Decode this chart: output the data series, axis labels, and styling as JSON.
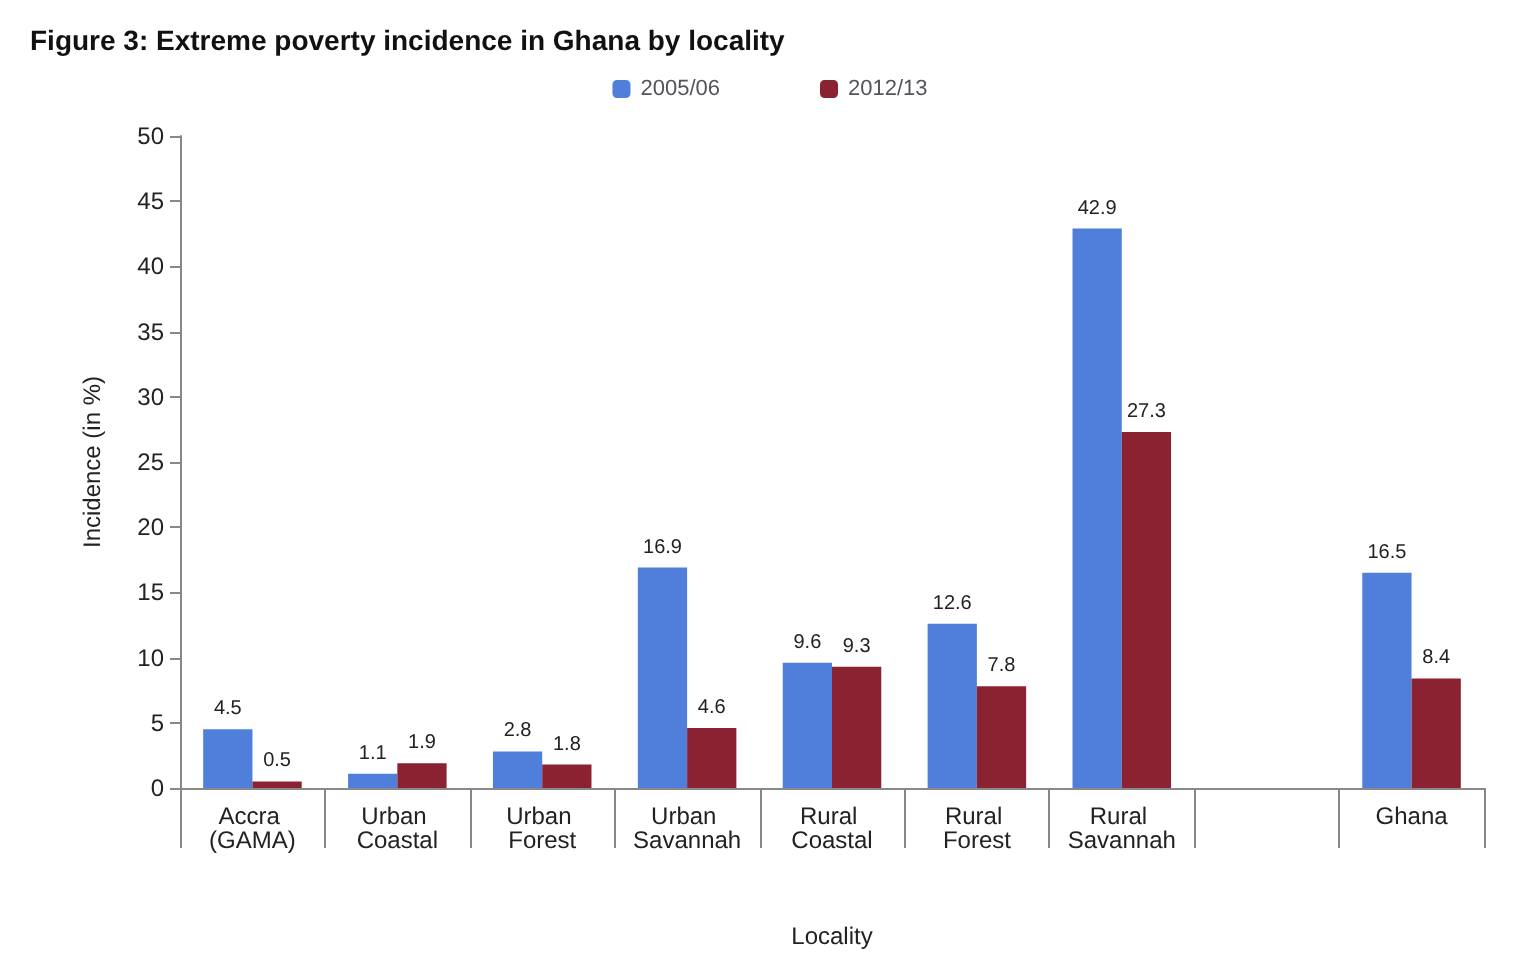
{
  "chart_data": {
    "type": "bar",
    "title": "Figure 3: Extreme poverty incidence in Ghana by locality",
    "xlabel": "Locality",
    "ylabel": "Incidence (in %)",
    "categories": [
      "Accra (GAMA)",
      "Urban Coastal",
      "Urban Forest",
      "Urban Savannah",
      "Rural Coastal",
      "Rural Forest",
      "Rural Savannah",
      null,
      "Ghana"
    ],
    "series": [
      {
        "name": "2005/06",
        "color": "#4f7fdb",
        "values": [
          4.5,
          1.1,
          2.8,
          16.9,
          9.6,
          12.6,
          42.9,
          null,
          16.5
        ]
      },
      {
        "name": "2012/13",
        "color": "#8b2232",
        "values": [
          0.5,
          1.9,
          1.8,
          4.6,
          9.3,
          7.8,
          27.3,
          null,
          8.4
        ]
      }
    ],
    "ylim": [
      0,
      50
    ],
    "yticks": [
      0,
      5,
      10,
      15,
      20,
      25,
      30,
      35,
      40,
      45,
      50
    ],
    "grid": false,
    "legend": "top",
    "data_labels": true
  }
}
